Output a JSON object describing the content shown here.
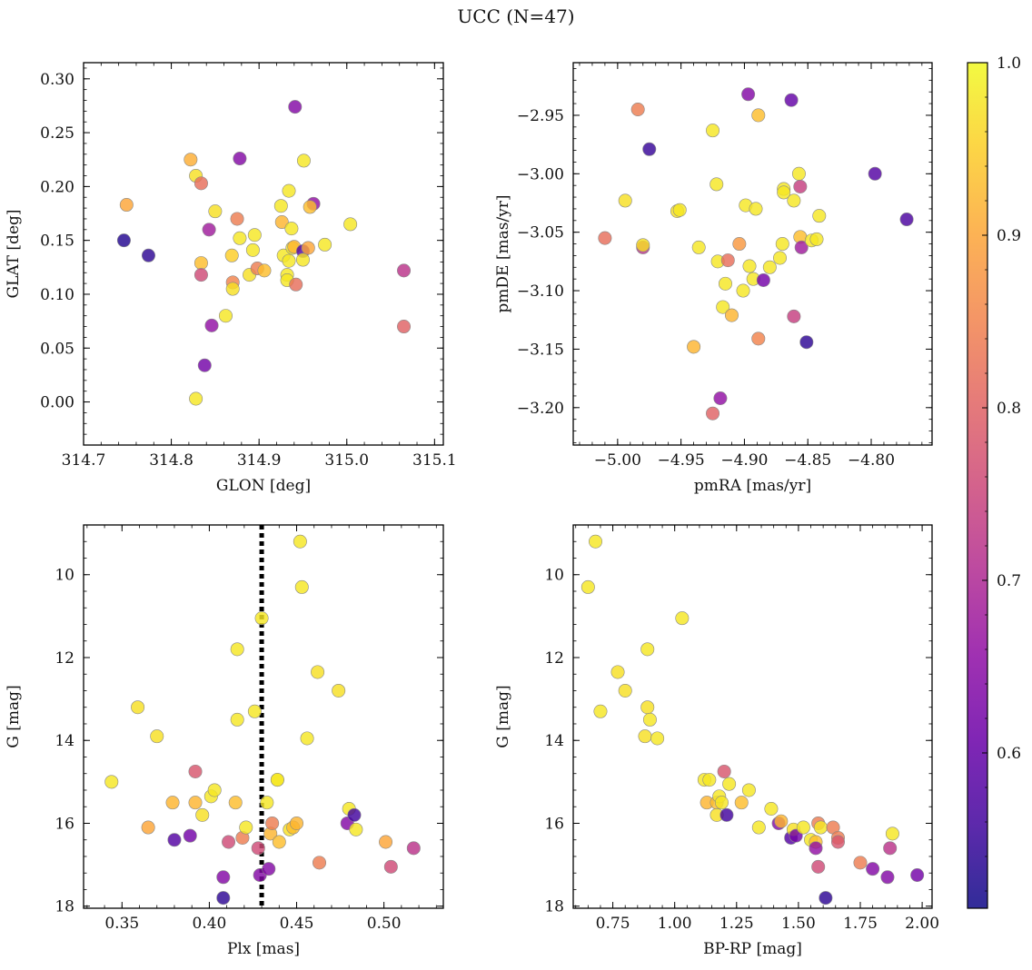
{
  "figure": {
    "title": "UCC (N=47)"
  },
  "colorbar": {
    "colormap": "plasma",
    "range": [
      0.51,
      1.0
    ],
    "ticks": [
      0.6,
      0.7,
      0.8,
      0.9,
      1.0
    ],
    "tick_labels": [
      "0.6",
      "0.7",
      "0.8",
      "0.9",
      "1.0"
    ]
  },
  "reference_line": {
    "panel": "cmd_plx",
    "plx_value": 0.43,
    "style": "dotted",
    "color": "#000000"
  },
  "chart_data": [
    {
      "id": "sky",
      "type": "scatter",
      "xlabel": "GLON [deg]",
      "ylabel": "GLAT [deg]",
      "xlim": [
        314.7,
        315.11
      ],
      "ylim": [
        -0.04,
        0.315
      ],
      "xticks": [
        314.7,
        314.8,
        314.9,
        315.0,
        315.1
      ],
      "xtick_labels": [
        "314.7",
        "314.8",
        "314.9",
        "315.0",
        "315.1"
      ],
      "yticks": [
        0.0,
        0.05,
        0.1,
        0.15,
        0.2,
        0.25,
        0.3
      ],
      "ytick_labels": [
        "0.00",
        "0.05",
        "0.10",
        "0.15",
        "0.20",
        "0.25",
        "0.30"
      ],
      "points": [
        {
          "x": 314.746,
          "y": 0.15,
          "c": 0.53
        },
        {
          "x": 314.749,
          "y": 0.183,
          "c": 0.9
        },
        {
          "x": 314.774,
          "y": 0.136,
          "c": 0.54
        },
        {
          "x": 314.822,
          "y": 0.225,
          "c": 0.91
        },
        {
          "x": 314.828,
          "y": 0.21,
          "c": 0.97
        },
        {
          "x": 314.834,
          "y": 0.203,
          "c": 0.82
        },
        {
          "x": 314.834,
          "y": 0.129,
          "c": 0.93
        },
        {
          "x": 314.834,
          "y": 0.118,
          "c": 0.76
        },
        {
          "x": 314.828,
          "y": 0.003,
          "c": 0.98
        },
        {
          "x": 314.838,
          "y": 0.034,
          "c": 0.62
        },
        {
          "x": 314.843,
          "y": 0.16,
          "c": 0.68
        },
        {
          "x": 314.846,
          "y": 0.071,
          "c": 0.66
        },
        {
          "x": 314.85,
          "y": 0.177,
          "c": 0.97
        },
        {
          "x": 314.862,
          "y": 0.08,
          "c": 0.98
        },
        {
          "x": 314.869,
          "y": 0.136,
          "c": 0.95
        },
        {
          "x": 314.87,
          "y": 0.111,
          "c": 0.85
        },
        {
          "x": 314.87,
          "y": 0.105,
          "c": 0.97
        },
        {
          "x": 314.875,
          "y": 0.17,
          "c": 0.84
        },
        {
          "x": 314.878,
          "y": 0.226,
          "c": 0.64
        },
        {
          "x": 314.878,
          "y": 0.152,
          "c": 0.98
        },
        {
          "x": 314.889,
          "y": 0.118,
          "c": 0.97
        },
        {
          "x": 314.893,
          "y": 0.141,
          "c": 0.98
        },
        {
          "x": 314.895,
          "y": 0.155,
          "c": 0.98
        },
        {
          "x": 314.898,
          "y": 0.124,
          "c": 0.84
        },
        {
          "x": 314.906,
          "y": 0.122,
          "c": 0.93
        },
        {
          "x": 314.925,
          "y": 0.182,
          "c": 0.98
        },
        {
          "x": 314.926,
          "y": 0.167,
          "c": 0.92
        },
        {
          "x": 314.928,
          "y": 0.136,
          "c": 0.98
        },
        {
          "x": 314.932,
          "y": 0.118,
          "c": 0.98
        },
        {
          "x": 314.932,
          "y": 0.113,
          "c": 0.98
        },
        {
          "x": 314.934,
          "y": 0.196,
          "c": 0.98
        },
        {
          "x": 314.934,
          "y": 0.131,
          "c": 0.98
        },
        {
          "x": 314.937,
          "y": 0.161,
          "c": 0.98
        },
        {
          "x": 314.938,
          "y": 0.143,
          "c": 0.98
        },
        {
          "x": 314.94,
          "y": 0.144,
          "c": 0.92
        },
        {
          "x": 314.941,
          "y": 0.274,
          "c": 0.64
        },
        {
          "x": 314.942,
          "y": 0.109,
          "c": 0.82
        },
        {
          "x": 314.95,
          "y": 0.14,
          "c": 0.58
        },
        {
          "x": 314.95,
          "y": 0.132,
          "c": 0.98
        },
        {
          "x": 314.951,
          "y": 0.224,
          "c": 0.98
        },
        {
          "x": 314.956,
          "y": 0.143,
          "c": 0.9
        },
        {
          "x": 314.962,
          "y": 0.184,
          "c": 0.66
        },
        {
          "x": 314.958,
          "y": 0.181,
          "c": 0.93
        },
        {
          "x": 314.975,
          "y": 0.146,
          "c": 0.98
        },
        {
          "x": 315.004,
          "y": 0.165,
          "c": 0.98
        },
        {
          "x": 315.065,
          "y": 0.122,
          "c": 0.72
        },
        {
          "x": 315.065,
          "y": 0.07,
          "c": 0.8
        }
      ]
    },
    {
      "id": "pm",
      "type": "scatter",
      "xlabel": "pmRA [mas/yr]",
      "ylabel": "pmDE [mas/yr]",
      "xlim": [
        -5.035,
        -4.752
      ],
      "ylim": [
        -3.232,
        -2.905
      ],
      "xticks": [
        -5.0,
        -4.95,
        -4.9,
        -4.85,
        -4.8,
        -4.75
      ],
      "xtick_labels": [
        "−5.00",
        "−4.95",
        "−4.90",
        "−4.85",
        "−4.80",
        "−4.75"
      ],
      "yticks": [
        -3.2,
        -3.15,
        -3.1,
        -3.05,
        -3.0,
        -2.95
      ],
      "ytick_labels": [
        "−3.20",
        "−3.15",
        "−3.10",
        "−3.05",
        "−3.00",
        "−2.95"
      ],
      "points": [
        {
          "x": -5.01,
          "y": -3.055,
          "c": 0.82
        },
        {
          "x": -4.994,
          "y": -3.023,
          "c": 0.97
        },
        {
          "x": -4.984,
          "y": -2.945,
          "c": 0.84
        },
        {
          "x": -4.98,
          "y": -3.063,
          "c": 0.72
        },
        {
          "x": -4.98,
          "y": -3.061,
          "c": 0.97
        },
        {
          "x": -4.975,
          "y": -2.979,
          "c": 0.55
        },
        {
          "x": -4.953,
          "y": -3.032,
          "c": 0.97
        },
        {
          "x": -4.951,
          "y": -3.031,
          "c": 0.98
        },
        {
          "x": -4.94,
          "y": -3.148,
          "c": 0.92
        },
        {
          "x": -4.936,
          "y": -3.063,
          "c": 0.98
        },
        {
          "x": -4.925,
          "y": -2.963,
          "c": 0.98
        },
        {
          "x": -4.922,
          "y": -3.009,
          "c": 0.98
        },
        {
          "x": -4.921,
          "y": -3.075,
          "c": 0.98
        },
        {
          "x": -4.919,
          "y": -3.192,
          "c": 0.66
        },
        {
          "x": -4.917,
          "y": -3.114,
          "c": 0.98
        },
        {
          "x": -4.915,
          "y": -3.094,
          "c": 0.98
        },
        {
          "x": -4.913,
          "y": -3.074,
          "c": 0.82
        },
        {
          "x": -4.91,
          "y": -3.121,
          "c": 0.92
        },
        {
          "x": -4.925,
          "y": -3.205,
          "c": 0.8
        },
        {
          "x": -4.904,
          "y": -3.06,
          "c": 0.88
        },
        {
          "x": -4.901,
          "y": -3.1,
          "c": 0.98
        },
        {
          "x": -4.899,
          "y": -3.027,
          "c": 0.98
        },
        {
          "x": -4.897,
          "y": -2.932,
          "c": 0.64
        },
        {
          "x": -4.896,
          "y": -3.079,
          "c": 0.98
        },
        {
          "x": -4.893,
          "y": -3.09,
          "c": 0.98
        },
        {
          "x": -4.891,
          "y": -3.03,
          "c": 0.98
        },
        {
          "x": -4.889,
          "y": -2.95,
          "c": 0.93
        },
        {
          "x": -4.889,
          "y": -3.141,
          "c": 0.85
        },
        {
          "x": -4.885,
          "y": -3.091,
          "c": 0.62
        },
        {
          "x": -4.88,
          "y": -3.08,
          "c": 0.98
        },
        {
          "x": -4.872,
          "y": -3.072,
          "c": 0.98
        },
        {
          "x": -4.87,
          "y": -3.06,
          "c": 0.98
        },
        {
          "x": -4.869,
          "y": -3.013,
          "c": 0.98
        },
        {
          "x": -4.869,
          "y": -3.016,
          "c": 0.98
        },
        {
          "x": -4.863,
          "y": -2.937,
          "c": 0.6
        },
        {
          "x": -4.861,
          "y": -3.122,
          "c": 0.74
        },
        {
          "x": -4.861,
          "y": -3.023,
          "c": 0.98
        },
        {
          "x": -4.857,
          "y": -3.0,
          "c": 0.98
        },
        {
          "x": -4.856,
          "y": -3.011,
          "c": 0.74
        },
        {
          "x": -4.856,
          "y": -3.054,
          "c": 0.93
        },
        {
          "x": -4.855,
          "y": -3.063,
          "c": 0.68
        },
        {
          "x": -4.851,
          "y": -3.144,
          "c": 0.54
        },
        {
          "x": -4.847,
          "y": -3.057,
          "c": 0.98
        },
        {
          "x": -4.843,
          "y": -3.056,
          "c": 0.98
        },
        {
          "x": -4.841,
          "y": -3.036,
          "c": 0.98
        },
        {
          "x": -4.797,
          "y": -3.0,
          "c": 0.58
        },
        {
          "x": -4.772,
          "y": -3.039,
          "c": 0.57
        }
      ]
    },
    {
      "id": "cmd_plx",
      "type": "scatter",
      "xlabel": "Plx [mas]",
      "ylabel": "G [mag]",
      "xlim": [
        0.328,
        0.534
      ],
      "ylim": [
        18.05,
        8.8
      ],
      "y_inverted": true,
      "xticks": [
        0.35,
        0.4,
        0.45,
        0.5
      ],
      "xtick_labels": [
        "0.35",
        "0.40",
        "0.45",
        "0.50"
      ],
      "yticks": [
        10,
        12,
        14,
        16,
        18
      ],
      "ytick_labels": [
        "10",
        "12",
        "14",
        "16",
        "18"
      ],
      "points": [
        {
          "x": 0.344,
          "y": 15.0,
          "c": 0.98
        },
        {
          "x": 0.359,
          "y": 13.2,
          "c": 0.97
        },
        {
          "x": 0.365,
          "y": 16.1,
          "c": 0.9
        },
        {
          "x": 0.37,
          "y": 13.9,
          "c": 0.97
        },
        {
          "x": 0.379,
          "y": 15.5,
          "c": 0.92
        },
        {
          "x": 0.38,
          "y": 16.4,
          "c": 0.58
        },
        {
          "x": 0.389,
          "y": 16.3,
          "c": 0.62
        },
        {
          "x": 0.392,
          "y": 14.75,
          "c": 0.78
        },
        {
          "x": 0.392,
          "y": 15.5,
          "c": 0.92
        },
        {
          "x": 0.396,
          "y": 15.8,
          "c": 0.97
        },
        {
          "x": 0.401,
          "y": 15.35,
          "c": 0.98
        },
        {
          "x": 0.403,
          "y": 15.2,
          "c": 0.98
        },
        {
          "x": 0.408,
          "y": 17.3,
          "c": 0.64
        },
        {
          "x": 0.408,
          "y": 17.8,
          "c": 0.54
        },
        {
          "x": 0.411,
          "y": 16.45,
          "c": 0.76
        },
        {
          "x": 0.415,
          "y": 15.5,
          "c": 0.93
        },
        {
          "x": 0.416,
          "y": 13.5,
          "c": 0.98
        },
        {
          "x": 0.416,
          "y": 11.8,
          "c": 0.98
        },
        {
          "x": 0.419,
          "y": 16.35,
          "c": 0.84
        },
        {
          "x": 0.421,
          "y": 16.1,
          "c": 0.98
        },
        {
          "x": 0.426,
          "y": 13.3,
          "c": 0.98
        },
        {
          "x": 0.428,
          "y": 16.6,
          "c": 0.76
        },
        {
          "x": 0.429,
          "y": 17.25,
          "c": 0.64
        },
        {
          "x": 0.43,
          "y": 11.05,
          "c": 0.98
        },
        {
          "x": 0.433,
          "y": 15.5,
          "c": 0.98
        },
        {
          "x": 0.434,
          "y": 17.1,
          "c": 0.64
        },
        {
          "x": 0.435,
          "y": 16.25,
          "c": 0.92
        },
        {
          "x": 0.436,
          "y": 16.0,
          "c": 0.84
        },
        {
          "x": 0.439,
          "y": 14.95,
          "c": 0.98
        },
        {
          "x": 0.44,
          "y": 16.45,
          "c": 0.93
        },
        {
          "x": 0.439,
          "y": 14.95,
          "c": 0.98
        },
        {
          "x": 0.446,
          "y": 16.15,
          "c": 0.97
        },
        {
          "x": 0.448,
          "y": 16.1,
          "c": 0.93
        },
        {
          "x": 0.45,
          "y": 16.0,
          "c": 0.92
        },
        {
          "x": 0.452,
          "y": 9.2,
          "c": 0.98
        },
        {
          "x": 0.453,
          "y": 10.3,
          "c": 0.98
        },
        {
          "x": 0.456,
          "y": 13.95,
          "c": 0.98
        },
        {
          "x": 0.462,
          "y": 12.35,
          "c": 0.97
        },
        {
          "x": 0.463,
          "y": 16.95,
          "c": 0.84
        },
        {
          "x": 0.474,
          "y": 12.8,
          "c": 0.97
        },
        {
          "x": 0.479,
          "y": 16.0,
          "c": 0.64
        },
        {
          "x": 0.48,
          "y": 15.65,
          "c": 0.98
        },
        {
          "x": 0.483,
          "y": 15.8,
          "c": 0.56
        },
        {
          "x": 0.484,
          "y": 16.15,
          "c": 0.98
        },
        {
          "x": 0.501,
          "y": 16.45,
          "c": 0.9
        },
        {
          "x": 0.504,
          "y": 17.05,
          "c": 0.76
        },
        {
          "x": 0.517,
          "y": 16.6,
          "c": 0.72
        }
      ]
    },
    {
      "id": "cmd_color",
      "type": "scatter",
      "xlabel": "BP-RP [mag]",
      "ylabel": "G [mag]",
      "xlim": [
        0.59,
        2.04
      ],
      "ylim": [
        18.05,
        8.8
      ],
      "y_inverted": true,
      "xticks": [
        0.75,
        1.0,
        1.25,
        1.5,
        1.75,
        2.0
      ],
      "xtick_labels": [
        "0.75",
        "1.00",
        "1.25",
        "1.50",
        "1.75",
        "2.00"
      ],
      "yticks": [
        10,
        12,
        14,
        16,
        18
      ],
      "ytick_labels": [
        "10",
        "12",
        "14",
        "16",
        "18"
      ],
      "points": [
        {
          "x": 0.68,
          "y": 9.2,
          "c": 0.98
        },
        {
          "x": 0.65,
          "y": 10.3,
          "c": 0.98
        },
        {
          "x": 0.7,
          "y": 13.3,
          "c": 0.98
        },
        {
          "x": 0.77,
          "y": 12.35,
          "c": 0.97
        },
        {
          "x": 0.8,
          "y": 12.8,
          "c": 0.97
        },
        {
          "x": 0.88,
          "y": 13.9,
          "c": 0.97
        },
        {
          "x": 0.89,
          "y": 11.8,
          "c": 0.98
        },
        {
          "x": 0.89,
          "y": 13.2,
          "c": 0.97
        },
        {
          "x": 0.9,
          "y": 13.5,
          "c": 0.98
        },
        {
          "x": 0.93,
          "y": 13.95,
          "c": 0.98
        },
        {
          "x": 1.03,
          "y": 11.05,
          "c": 0.98
        },
        {
          "x": 1.12,
          "y": 14.95,
          "c": 0.98
        },
        {
          "x": 1.13,
          "y": 15.5,
          "c": 0.92
        },
        {
          "x": 1.14,
          "y": 14.95,
          "c": 0.98
        },
        {
          "x": 1.17,
          "y": 15.5,
          "c": 0.93
        },
        {
          "x": 1.17,
          "y": 15.8,
          "c": 0.97
        },
        {
          "x": 1.18,
          "y": 15.35,
          "c": 0.98
        },
        {
          "x": 1.19,
          "y": 15.5,
          "c": 0.98
        },
        {
          "x": 1.2,
          "y": 14.75,
          "c": 0.78
        },
        {
          "x": 1.21,
          "y": 15.8,
          "c": 0.56
        },
        {
          "x": 1.22,
          "y": 15.05,
          "c": 0.98
        },
        {
          "x": 1.27,
          "y": 15.5,
          "c": 0.93
        },
        {
          "x": 1.3,
          "y": 15.2,
          "c": 0.98
        },
        {
          "x": 1.34,
          "y": 16.1,
          "c": 0.98
        },
        {
          "x": 1.39,
          "y": 15.65,
          "c": 0.98
        },
        {
          "x": 1.42,
          "y": 16.0,
          "c": 0.64
        },
        {
          "x": 1.43,
          "y": 15.95,
          "c": 0.92
        },
        {
          "x": 1.47,
          "y": 16.35,
          "c": 0.58
        },
        {
          "x": 1.48,
          "y": 16.15,
          "c": 0.97
        },
        {
          "x": 1.49,
          "y": 16.3,
          "c": 0.62
        },
        {
          "x": 1.52,
          "y": 16.1,
          "c": 0.98
        },
        {
          "x": 1.55,
          "y": 16.4,
          "c": 0.98
        },
        {
          "x": 1.57,
          "y": 16.45,
          "c": 0.93
        },
        {
          "x": 1.57,
          "y": 16.6,
          "c": 0.66
        },
        {
          "x": 1.58,
          "y": 17.05,
          "c": 0.76
        },
        {
          "x": 1.58,
          "y": 16.0,
          "c": 0.84
        },
        {
          "x": 1.59,
          "y": 16.1,
          "c": 0.98
        },
        {
          "x": 1.61,
          "y": 17.8,
          "c": 0.54
        },
        {
          "x": 1.64,
          "y": 16.1,
          "c": 0.84
        },
        {
          "x": 1.66,
          "y": 16.35,
          "c": 0.84
        },
        {
          "x": 1.66,
          "y": 16.45,
          "c": 0.78
        },
        {
          "x": 1.75,
          "y": 16.95,
          "c": 0.84
        },
        {
          "x": 1.8,
          "y": 17.1,
          "c": 0.64
        },
        {
          "x": 1.86,
          "y": 17.3,
          "c": 0.64
        },
        {
          "x": 1.87,
          "y": 16.6,
          "c": 0.72
        },
        {
          "x": 1.88,
          "y": 16.25,
          "c": 0.98
        },
        {
          "x": 1.98,
          "y": 17.25,
          "c": 0.62
        }
      ]
    }
  ]
}
